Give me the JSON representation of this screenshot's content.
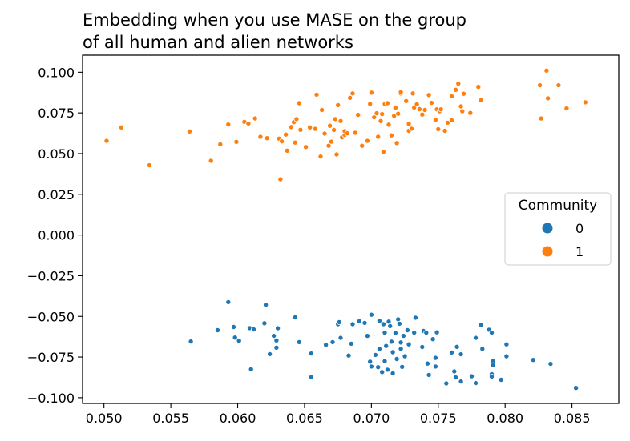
{
  "chart_data": {
    "type": "scatter",
    "title_lines": [
      "Embedding when you use MASE on the group",
      "of all human and alien networks"
    ],
    "xlabel": "",
    "ylabel": "",
    "xlim": [
      0.0484,
      0.0885
    ],
    "ylim": [
      -0.1035,
      0.1105
    ],
    "xticks": [
      0.05,
      0.055,
      0.06,
      0.065,
      0.07,
      0.075,
      0.08,
      0.085
    ],
    "xtick_labels": [
      "0.050",
      "0.055",
      "0.060",
      "0.065",
      "0.070",
      "0.075",
      "0.080",
      "0.085"
    ],
    "yticks": [
      0.1,
      0.075,
      0.05,
      0.025,
      0.0,
      -0.025,
      -0.05,
      -0.075,
      -0.1
    ],
    "ytick_labels": [
      "0.100",
      "0.075",
      "0.050",
      "0.025",
      "0.000",
      "−0.025",
      "−0.050",
      "−0.075",
      "−0.100"
    ],
    "grid": false,
    "legend": {
      "title": "Community",
      "placement": "center-right",
      "entries": [
        {
          "label": "0",
          "color": "#1f77b4"
        },
        {
          "label": "1",
          "color": "#ff7f0e"
        }
      ]
    },
    "series": [
      {
        "name": "0",
        "color": "#1f77b4",
        "points": [
          [
            0.0593,
            -0.0412
          ],
          [
            0.0621,
            -0.0429
          ],
          [
            0.0643,
            -0.0506
          ],
          [
            0.07,
            -0.049
          ],
          [
            0.0733,
            -0.0508
          ],
          [
            0.0585,
            -0.0585
          ],
          [
            0.0597,
            -0.0565
          ],
          [
            0.0609,
            -0.0572
          ],
          [
            0.0612,
            -0.058
          ],
          [
            0.062,
            -0.0542
          ],
          [
            0.063,
            -0.0573
          ],
          [
            0.0627,
            -0.062
          ],
          [
            0.0629,
            -0.0648
          ],
          [
            0.0629,
            -0.0692
          ],
          [
            0.0624,
            -0.0732
          ],
          [
            0.0598,
            -0.063
          ],
          [
            0.0601,
            -0.065
          ],
          [
            0.0565,
            -0.0654
          ],
          [
            0.061,
            -0.0825
          ],
          [
            0.0646,
            -0.0658
          ],
          [
            0.0655,
            -0.0728
          ],
          [
            0.0655,
            -0.0873
          ],
          [
            0.0666,
            -0.0675
          ],
          [
            0.0671,
            -0.0658
          ],
          [
            0.0675,
            -0.0548
          ],
          [
            0.0676,
            -0.0535
          ],
          [
            0.0677,
            -0.0632
          ],
          [
            0.0683,
            -0.0741
          ],
          [
            0.0686,
            -0.0548
          ],
          [
            0.0685,
            -0.0668
          ],
          [
            0.0691,
            -0.053
          ],
          [
            0.0695,
            -0.054
          ],
          [
            0.0697,
            -0.062
          ],
          [
            0.0699,
            -0.0778
          ],
          [
            0.07,
            -0.0808
          ],
          [
            0.0703,
            -0.0737
          ],
          [
            0.0705,
            -0.0812
          ],
          [
            0.0706,
            -0.0528
          ],
          [
            0.0706,
            -0.07
          ],
          [
            0.0708,
            -0.0842
          ],
          [
            0.0709,
            -0.0548
          ],
          [
            0.071,
            -0.06
          ],
          [
            0.071,
            -0.0775
          ],
          [
            0.0711,
            -0.0682
          ],
          [
            0.0712,
            -0.0828
          ],
          [
            0.0713,
            -0.0532
          ],
          [
            0.0714,
            -0.056
          ],
          [
            0.0715,
            -0.0655
          ],
          [
            0.0716,
            -0.072
          ],
          [
            0.0716,
            -0.085
          ],
          [
            0.0718,
            -0.0602
          ],
          [
            0.0719,
            -0.0762
          ],
          [
            0.072,
            -0.0518
          ],
          [
            0.0721,
            -0.0545
          ],
          [
            0.0722,
            -0.066
          ],
          [
            0.0722,
            -0.07
          ],
          [
            0.0723,
            -0.081
          ],
          [
            0.0724,
            -0.062
          ],
          [
            0.0725,
            -0.0745
          ],
          [
            0.0727,
            -0.0585
          ],
          [
            0.0728,
            -0.0672
          ],
          [
            0.0732,
            -0.06
          ],
          [
            0.0738,
            -0.0688
          ],
          [
            0.0739,
            -0.059
          ],
          [
            0.0741,
            -0.06
          ],
          [
            0.0742,
            -0.079
          ],
          [
            0.0743,
            -0.086
          ],
          [
            0.0746,
            -0.064
          ],
          [
            0.0748,
            -0.0755
          ],
          [
            0.0749,
            -0.0598
          ],
          [
            0.0748,
            -0.0808
          ],
          [
            0.0756,
            -0.0912
          ],
          [
            0.076,
            -0.0722
          ],
          [
            0.0762,
            -0.0838
          ],
          [
            0.0763,
            -0.0875
          ],
          [
            0.0764,
            -0.0687
          ],
          [
            0.0767,
            -0.0733
          ],
          [
            0.0767,
            -0.09
          ],
          [
            0.0775,
            -0.0868
          ],
          [
            0.0778,
            -0.091
          ],
          [
            0.0778,
            -0.0632
          ],
          [
            0.0782,
            -0.0552
          ],
          [
            0.0783,
            -0.07
          ],
          [
            0.0788,
            -0.0582
          ],
          [
            0.079,
            -0.06
          ],
          [
            0.079,
            -0.0855
          ],
          [
            0.079,
            -0.087
          ],
          [
            0.0791,
            -0.0775
          ],
          [
            0.0791,
            -0.08
          ],
          [
            0.0797,
            -0.089
          ],
          [
            0.0801,
            -0.0672
          ],
          [
            0.0801,
            -0.0745
          ],
          [
            0.0821,
            -0.0768
          ],
          [
            0.0834,
            -0.0792
          ],
          [
            0.0853,
            -0.094
          ]
        ]
      },
      {
        "name": "1",
        "color": "#ff7f0e",
        "points": [
          [
            0.0502,
            0.0578
          ],
          [
            0.0513,
            0.0661
          ],
          [
            0.0534,
            0.0428
          ],
          [
            0.0564,
            0.0636
          ],
          [
            0.058,
            0.0456
          ],
          [
            0.0587,
            0.0557
          ],
          [
            0.0593,
            0.0679
          ],
          [
            0.0599,
            0.0572
          ],
          [
            0.0605,
            0.0695
          ],
          [
            0.0608,
            0.0685
          ],
          [
            0.0613,
            0.0716
          ],
          [
            0.0617,
            0.0603
          ],
          [
            0.0622,
            0.0595
          ],
          [
            0.0632,
            0.0342
          ],
          [
            0.0631,
            0.0592
          ],
          [
            0.0633,
            0.0575
          ],
          [
            0.0636,
            0.0617
          ],
          [
            0.0637,
            0.0518
          ],
          [
            0.064,
            0.0663
          ],
          [
            0.0642,
            0.0693
          ],
          [
            0.0643,
            0.0568
          ],
          [
            0.0644,
            0.0712
          ],
          [
            0.0646,
            0.081
          ],
          [
            0.0647,
            0.0646
          ],
          [
            0.0651,
            0.054
          ],
          [
            0.0654,
            0.0661
          ],
          [
            0.0658,
            0.0652
          ],
          [
            0.0659,
            0.0862
          ],
          [
            0.0662,
            0.0482
          ],
          [
            0.0663,
            0.0768
          ],
          [
            0.0665,
            0.0623
          ],
          [
            0.0668,
            0.0548
          ],
          [
            0.0669,
            0.0671
          ],
          [
            0.067,
            0.0573
          ],
          [
            0.0672,
            0.0645
          ],
          [
            0.0673,
            0.0712
          ],
          [
            0.0674,
            0.0495
          ],
          [
            0.0675,
            0.0798
          ],
          [
            0.0677,
            0.07
          ],
          [
            0.0678,
            0.06
          ],
          [
            0.068,
            0.0615
          ],
          [
            0.068,
            0.0638
          ],
          [
            0.0682,
            0.0625
          ],
          [
            0.0684,
            0.0843
          ],
          [
            0.0686,
            0.087
          ],
          [
            0.0688,
            0.0628
          ],
          [
            0.069,
            0.0738
          ],
          [
            0.0693,
            0.0548
          ],
          [
            0.0697,
            0.0578
          ],
          [
            0.0699,
            0.0805
          ],
          [
            0.07,
            0.0875
          ],
          [
            0.0702,
            0.0723
          ],
          [
            0.0704,
            0.0748
          ],
          [
            0.0705,
            0.0603
          ],
          [
            0.0707,
            0.07
          ],
          [
            0.0708,
            0.0743
          ],
          [
            0.0709,
            0.051
          ],
          [
            0.071,
            0.0805
          ],
          [
            0.0712,
            0.081
          ],
          [
            0.0713,
            0.0678
          ],
          [
            0.0715,
            0.0612
          ],
          [
            0.0717,
            0.0732
          ],
          [
            0.0718,
            0.0782
          ],
          [
            0.0719,
            0.0565
          ],
          [
            0.072,
            0.0745
          ],
          [
            0.0722,
            0.087
          ],
          [
            0.0722,
            0.0878
          ],
          [
            0.0726,
            0.0823
          ],
          [
            0.0728,
            0.0683
          ],
          [
            0.0728,
            0.064
          ],
          [
            0.073,
            0.0653
          ],
          [
            0.0731,
            0.087
          ],
          [
            0.0732,
            0.0783
          ],
          [
            0.0734,
            0.0803
          ],
          [
            0.0736,
            0.0773
          ],
          [
            0.0738,
            0.074
          ],
          [
            0.074,
            0.0768
          ],
          [
            0.0743,
            0.086
          ],
          [
            0.0745,
            0.0812
          ],
          [
            0.0748,
            0.0707
          ],
          [
            0.0749,
            0.0772
          ],
          [
            0.075,
            0.065
          ],
          [
            0.0751,
            0.076
          ],
          [
            0.0752,
            0.0772
          ],
          [
            0.0755,
            0.064
          ],
          [
            0.0757,
            0.069
          ],
          [
            0.076,
            0.0705
          ],
          [
            0.076,
            0.0852
          ],
          [
            0.0763,
            0.0892
          ],
          [
            0.0765,
            0.093
          ],
          [
            0.0767,
            0.079
          ],
          [
            0.0768,
            0.076
          ],
          [
            0.0769,
            0.0868
          ],
          [
            0.0774,
            0.075
          ],
          [
            0.078,
            0.091
          ],
          [
            0.0782,
            0.0828
          ],
          [
            0.0826,
            0.092
          ],
          [
            0.0827,
            0.0716
          ],
          [
            0.0831,
            0.101
          ],
          [
            0.0832,
            0.084
          ],
          [
            0.084,
            0.092
          ],
          [
            0.0846,
            0.0778
          ],
          [
            0.086,
            0.0815
          ]
        ]
      }
    ]
  }
}
